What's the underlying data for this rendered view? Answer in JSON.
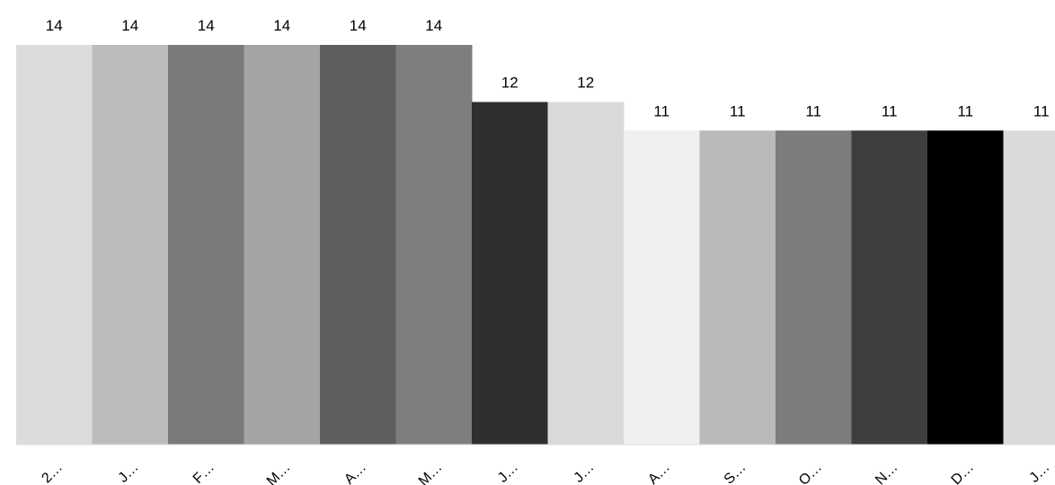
{
  "chart_data": {
    "type": "bar",
    "categories": [
      "2…",
      "J…",
      "F…",
      "M…",
      "A…",
      "M…",
      "J…",
      "J…",
      "A…",
      "S…",
      "O…",
      "N…",
      "D…",
      "J…"
    ],
    "values": [
      14,
      14,
      14,
      14,
      14,
      14,
      12,
      12,
      11,
      11,
      11,
      11,
      11,
      11
    ],
    "colors": [
      "#dcdcdc",
      "#bcbcbc",
      "#7a7a7a",
      "#a4a4a4",
      "#5e5e5e",
      "#7e7e7e",
      "#2f2f2f",
      "#dadada",
      "#f0f0f0",
      "#bababa",
      "#7c7c7c",
      "#3e3e3e",
      "#000000",
      "#dadada"
    ],
    "ylim": [
      0,
      14
    ],
    "grid": false,
    "legend": "none",
    "title": "",
    "xlabel": "",
    "ylabel": ""
  }
}
